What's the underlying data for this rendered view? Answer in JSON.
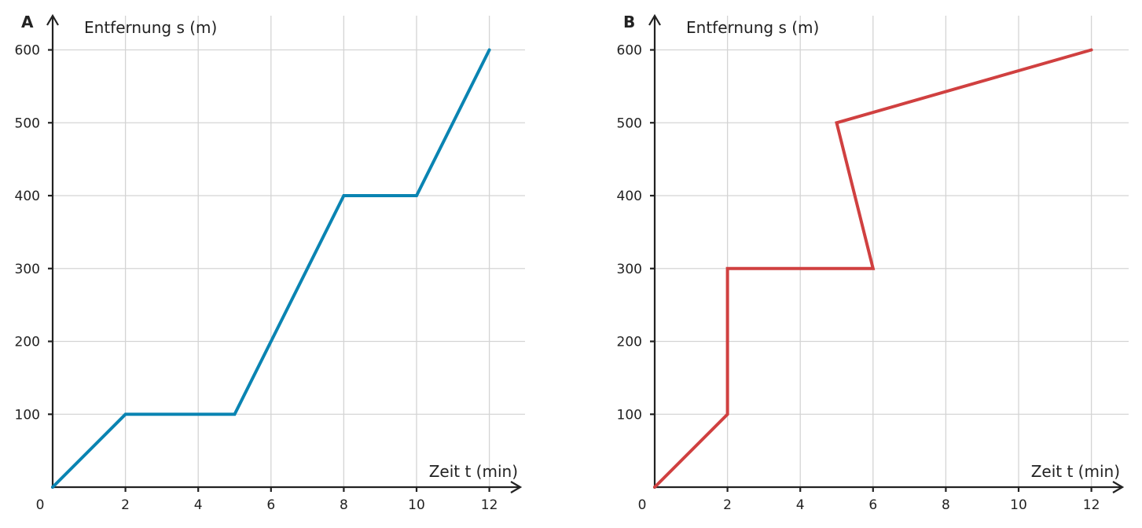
{
  "chart_data": [
    {
      "type": "line",
      "panel_label": "A",
      "xlabel": "Zeit t (min)",
      "ylabel": "Entfernung s (m)",
      "origin_label": "0",
      "xlim": [
        0,
        13
      ],
      "ylim": [
        0,
        600
      ],
      "xticks": [
        2,
        4,
        6,
        8,
        10,
        12
      ],
      "yticks": [
        100,
        200,
        300,
        400,
        500,
        600
      ],
      "grid": true,
      "series": [
        {
          "color": "#0a84b2",
          "x": [
            0,
            2,
            5,
            8,
            10,
            12
          ],
          "y": [
            0,
            100,
            100,
            400,
            400,
            600
          ]
        }
      ]
    },
    {
      "type": "line",
      "panel_label": "B",
      "xlabel": "Zeit t (min)",
      "ylabel": "Entfernung s (m)",
      "origin_label": "0",
      "xlim": [
        0,
        13
      ],
      "ylim": [
        0,
        600
      ],
      "xticks": [
        2,
        4,
        6,
        8,
        10,
        12
      ],
      "yticks": [
        100,
        200,
        300,
        400,
        500,
        600
      ],
      "grid": true,
      "series": [
        {
          "color": "#d04040",
          "x": [
            0,
            2,
            2,
            6,
            5,
            12
          ],
          "y": [
            0,
            100,
            300,
            300,
            500,
            600
          ]
        }
      ]
    }
  ]
}
